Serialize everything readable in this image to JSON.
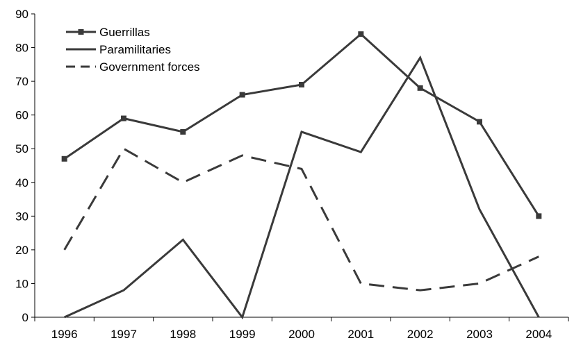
{
  "chart_data": {
    "type": "line",
    "title": "",
    "xlabel": "",
    "ylabel": "",
    "categories": [
      "1996",
      "1997",
      "1998",
      "1999",
      "2000",
      "2001",
      "2002",
      "2003",
      "2004"
    ],
    "ylim": [
      0,
      90
    ],
    "yticks": [
      "0",
      "10",
      "20",
      "30",
      "40",
      "50",
      "60",
      "70",
      "80",
      "90"
    ],
    "grid": false,
    "legend_position": "top-left",
    "series": [
      {
        "name": "Guerrillas",
        "values": [
          47,
          59,
          55,
          66,
          69,
          84,
          68,
          58,
          30
        ],
        "color": "#3a3a3a",
        "style": "solid",
        "marker": "square"
      },
      {
        "name": "Paramilitaries",
        "values": [
          0,
          8,
          23,
          0,
          55,
          49,
          77,
          32,
          0
        ],
        "color": "#3a3a3a",
        "style": "solid",
        "marker": "none"
      },
      {
        "name": "Government forces",
        "values": [
          20,
          50,
          40,
          48,
          44,
          10,
          8,
          10,
          18
        ],
        "color": "#3a3a3a",
        "style": "dashed",
        "marker": "none"
      }
    ]
  }
}
